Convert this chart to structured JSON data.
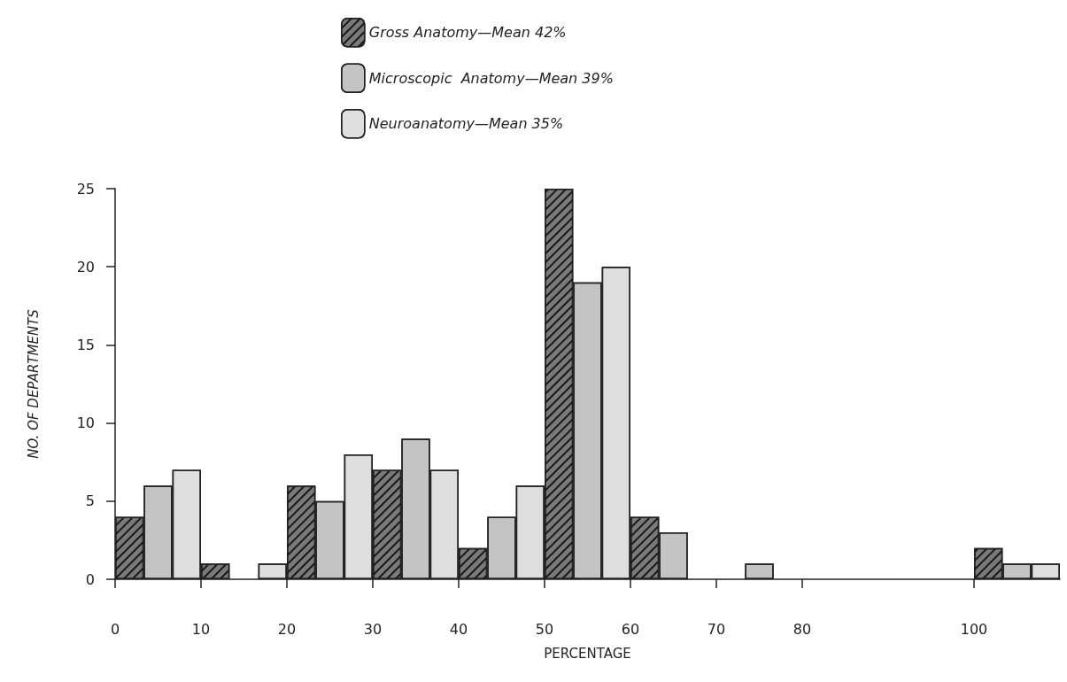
{
  "chart_data": {
    "type": "bar",
    "xlabel": "PERCENTAGE",
    "ylabel": "NO. OF DEPARTMENTS",
    "xlim": [
      0,
      110
    ],
    "xticks": [
      0,
      10,
      20,
      30,
      40,
      50,
      60,
      70,
      80,
      100
    ],
    "ylim": [
      0,
      25
    ],
    "yticks": [
      0,
      5,
      10,
      15,
      20,
      25
    ],
    "grid": false,
    "legend": "top",
    "series": [
      {
        "name": "Gross Anatomy—Mean 42%",
        "color": "#7a7a7a",
        "x": [
          1.67,
          11.67,
          21.67,
          31.67,
          41.67,
          51.67,
          61.67,
          101.67
        ],
        "values": [
          4,
          1,
          6,
          7,
          2,
          25,
          4,
          2
        ]
      },
      {
        "name": "Microscopic  Anatomy—Mean 39%",
        "color": "#c4c4c4",
        "x": [
          5,
          25,
          35,
          45,
          55,
          65,
          75,
          105
        ],
        "values": [
          6,
          5,
          9,
          4,
          19,
          3,
          1,
          1
        ]
      },
      {
        "name": "Neuroanatomy—Mean 35%",
        "color": "#dedede",
        "x": [
          8.33,
          18.33,
          28.33,
          38.33,
          48.33,
          58.33,
          108.33
        ],
        "values": [
          7,
          1,
          8,
          7,
          6,
          20,
          1
        ]
      }
    ]
  }
}
